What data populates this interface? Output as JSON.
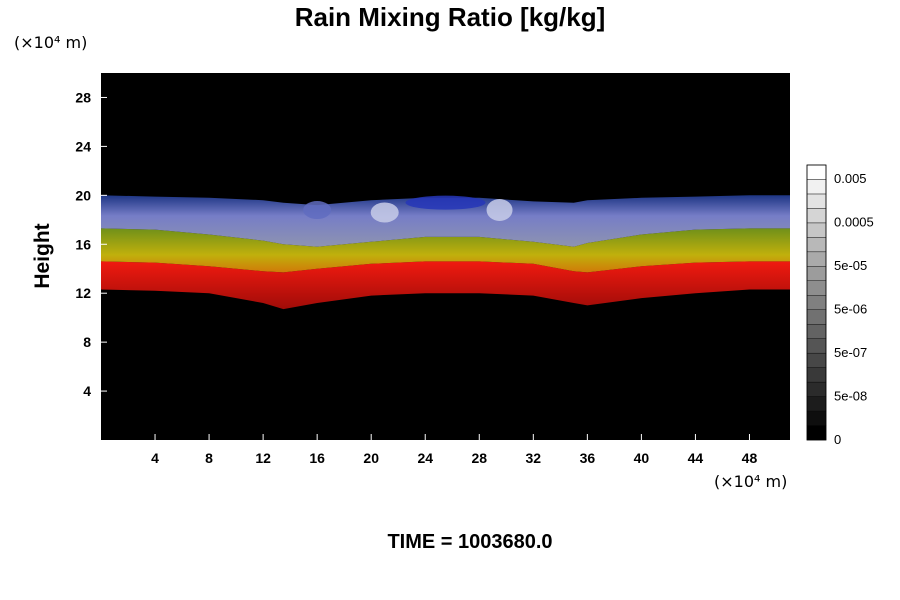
{
  "chart_data": {
    "type": "heatmap",
    "title": "Rain Mixing Ratio [kg/kg]",
    "ylabel": "Height",
    "x_unit_label": "(×10⁴ m)",
    "y_unit_label": "(×10⁴ m)",
    "xlim": [
      0,
      51
    ],
    "ylim": [
      0,
      30
    ],
    "x_ticks": [
      4,
      8,
      12,
      16,
      20,
      24,
      28,
      32,
      36,
      40,
      44,
      48
    ],
    "y_ticks": [
      4,
      8,
      12,
      16,
      20,
      24,
      28
    ],
    "colorbar": {
      "ticks": [
        "0",
        "5e-08",
        "5e-07",
        "5e-06",
        "5e-05",
        "0.0005",
        "0.005"
      ],
      "colors": [
        "#000000",
        "#ffffff"
      ]
    },
    "bands": {
      "x": [
        0,
        4,
        8,
        12,
        13.5,
        16,
        20,
        24,
        28,
        32,
        35,
        36,
        40,
        44,
        48,
        51
      ],
      "bottom": [
        12.3,
        12.2,
        12,
        11.2,
        10.7,
        11.2,
        11.8,
        12,
        12,
        11.8,
        11.2,
        11,
        11.6,
        12,
        12.3,
        12.3
      ],
      "red_top": [
        14.6,
        14.5,
        14.2,
        13.8,
        13.7,
        14,
        14.4,
        14.6,
        14.6,
        14.4,
        13.8,
        13.7,
        14.2,
        14.5,
        14.6,
        14.6
      ],
      "yellow_top": [
        17.3,
        17.2,
        16.8,
        16.3,
        16,
        15.8,
        16.2,
        16.6,
        16.6,
        16.2,
        15.8,
        16.1,
        16.8,
        17.2,
        17.3,
        17.3
      ],
      "top": [
        20,
        19.9,
        19.8,
        19.6,
        19.4,
        19.2,
        19.6,
        19.8,
        19.8,
        19.5,
        19.4,
        19.6,
        19.8,
        19.9,
        20,
        20
      ],
      "colors": {
        "red": "#e8120c",
        "yellow": "#b8b40c",
        "blue": "#8088d8",
        "dark_blue": "#2030b0",
        "background": "#000000"
      }
    }
  },
  "footer": {
    "time_label": "TIME = 1003680.0"
  }
}
